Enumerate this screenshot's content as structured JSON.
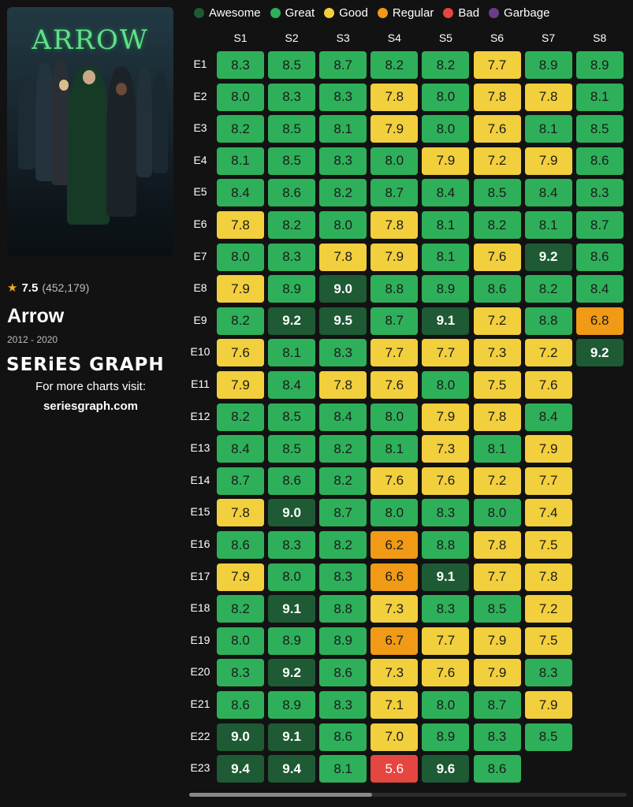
{
  "show": {
    "poster_title": "ARROW",
    "rating": "7.5",
    "votes": "(452,179)",
    "title": "Arrow",
    "years": "2012 - 2020"
  },
  "brand": {
    "name": "SERiES GRAPH",
    "visit_text": "For more charts visit:",
    "site": "seriesgraph.com"
  },
  "legend": [
    {
      "label": "Awesome",
      "color": "#1e5a34"
    },
    {
      "label": "Great",
      "color": "#2eb05a"
    },
    {
      "label": "Good",
      "color": "#f2cf3c"
    },
    {
      "label": "Regular",
      "color": "#f09a16"
    },
    {
      "label": "Bad",
      "color": "#e5463f"
    },
    {
      "label": "Garbage",
      "color": "#6c3c8c"
    }
  ],
  "chart_data": {
    "type": "heatmap",
    "seasons": [
      "S1",
      "S2",
      "S3",
      "S4",
      "S5",
      "S6",
      "S7",
      "S8"
    ],
    "episodes": [
      "E1",
      "E2",
      "E3",
      "E4",
      "E5",
      "E6",
      "E7",
      "E8",
      "E9",
      "E10",
      "E11",
      "E12",
      "E13",
      "E14",
      "E15",
      "E16",
      "E17",
      "E18",
      "E19",
      "E20",
      "E21",
      "E22",
      "E23"
    ],
    "ratings": [
      [
        "8.3",
        "8.0",
        "8.2",
        "8.1",
        "8.4",
        "7.8",
        "8.0",
        "7.9",
        "8.2",
        "7.6",
        "7.9",
        "8.2",
        "8.4",
        "8.7",
        "7.8",
        "8.6",
        "7.9",
        "8.2",
        "8.0",
        "8.3",
        "8.6",
        "9.0",
        "9.4"
      ],
      [
        "8.5",
        "8.3",
        "8.5",
        "8.5",
        "8.6",
        "8.2",
        "8.3",
        "8.9",
        "9.2",
        "8.1",
        "8.4",
        "8.5",
        "8.5",
        "8.6",
        "9.0",
        "8.3",
        "8.0",
        "9.1",
        "8.9",
        "9.2",
        "8.9",
        "9.1",
        "9.4"
      ],
      [
        "8.7",
        "8.3",
        "8.1",
        "8.3",
        "8.2",
        "8.0",
        "7.8",
        "9.0",
        "9.5",
        "8.3",
        "7.8",
        "8.4",
        "8.2",
        "8.2",
        "8.7",
        "8.2",
        "8.3",
        "8.8",
        "8.9",
        "8.6",
        "8.3",
        "8.6",
        "8.1"
      ],
      [
        "8.2",
        "7.8",
        "7.9",
        "8.0",
        "8.7",
        "7.8",
        "7.9",
        "8.8",
        "8.7",
        "7.7",
        "7.6",
        "8.0",
        "8.1",
        "7.6",
        "8.0",
        "6.2",
        "6.6",
        "7.3",
        "6.7",
        "7.3",
        "7.1",
        "7.0",
        "5.6"
      ],
      [
        "8.2",
        "8.0",
        "8.0",
        "7.9",
        "8.4",
        "8.1",
        "8.1",
        "8.9",
        "9.1",
        "7.7",
        "8.0",
        "7.9",
        "7.3",
        "7.6",
        "8.3",
        "8.8",
        "9.1",
        "8.3",
        "7.7",
        "7.6",
        "8.0",
        "8.9",
        "9.6"
      ],
      [
        "7.7",
        "7.8",
        "7.6",
        "7.2",
        "8.5",
        "8.2",
        "7.6",
        "8.6",
        "7.2",
        "7.3",
        "7.5",
        "7.8",
        "8.1",
        "7.2",
        "8.0",
        "7.8",
        "7.7",
        "8.5",
        "7.9",
        "7.9",
        "8.7",
        "8.3",
        "8.6"
      ],
      [
        "8.9",
        "7.8",
        "8.1",
        "7.9",
        "8.4",
        "8.1",
        "9.2",
        "8.2",
        "8.8",
        "7.2",
        "7.6",
        "8.4",
        "7.9",
        "7.7",
        "7.4",
        "7.5",
        "7.8",
        "7.2",
        "7.5",
        "8.3",
        "7.9",
        "8.5"
      ],
      [
        "8.9",
        "8.1",
        "8.5",
        "8.6",
        "8.3",
        "8.7",
        "8.6",
        "8.4",
        "6.8",
        "9.2"
      ]
    ],
    "categories": {
      "awesome_min": 9.0,
      "great_min": 8.0,
      "good_min": 7.0,
      "regular_min": 6.0,
      "bad_min": 5.0
    }
  }
}
